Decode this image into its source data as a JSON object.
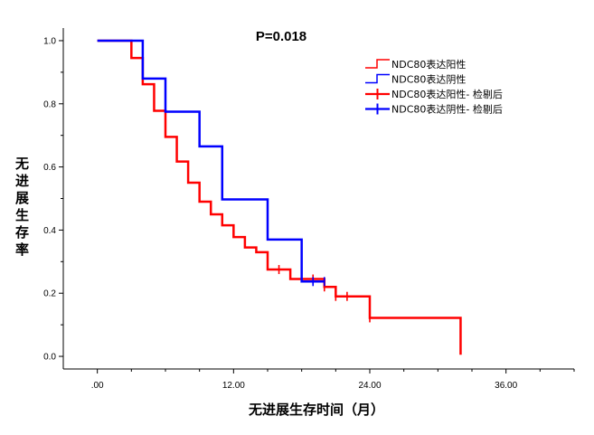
{
  "chart_data": {
    "type": "line",
    "annotation": "P=0.018",
    "xlabel": "无进展生存时间（月）",
    "ylabel": "无进展生存率",
    "xlim": [
      -3,
      42
    ],
    "ylim": [
      -0.04,
      1.04
    ],
    "x_ticks": [
      0,
      12,
      24,
      36
    ],
    "x_tick_labels": [
      ".00",
      "12.00",
      "24.00",
      "36.00"
    ],
    "x_minor_ticks": [
      3,
      6,
      9,
      15,
      18,
      21,
      27,
      30,
      33,
      39,
      42
    ],
    "y_ticks": [
      0,
      0.2,
      0.4,
      0.6,
      0.8,
      1.0
    ],
    "y_tick_labels": [
      "0.0",
      "0.2",
      "0.4",
      "0.6",
      "0.8",
      "1.0"
    ],
    "y_minor_ticks": [
      0.1,
      0.3,
      0.5,
      0.7,
      0.9
    ],
    "grid": false,
    "legend_position": "top-right",
    "legend": [
      {
        "label": "NDC80表达阳性",
        "color": "#ff0000",
        "kind": "step"
      },
      {
        "label": "NDC80表达阴性",
        "color": "#0000ff",
        "kind": "step"
      },
      {
        "label": "NDC80表达阳性- 检剔后",
        "color": "#ff0000",
        "kind": "censor"
      },
      {
        "label": "NDC80表达阴性- 检剔后",
        "color": "#0000ff",
        "kind": "censor"
      }
    ],
    "series": [
      {
        "name": "NDC80表达阳性",
        "color": "#ff0000",
        "steps": [
          [
            0,
            1.0
          ],
          [
            3,
            0.945
          ],
          [
            4,
            0.862
          ],
          [
            5,
            0.778
          ],
          [
            6,
            0.695
          ],
          [
            7,
            0.617
          ],
          [
            8,
            0.55
          ],
          [
            9,
            0.49
          ],
          [
            10,
            0.45
          ],
          [
            11,
            0.415
          ],
          [
            12,
            0.378
          ],
          [
            13,
            0.345
          ],
          [
            14,
            0.33
          ],
          [
            15,
            0.275
          ],
          [
            17,
            0.245
          ],
          [
            20,
            0.22
          ],
          [
            21,
            0.19
          ],
          [
            24,
            0.122
          ],
          [
            32,
            0.005
          ]
        ],
        "end_x": 32,
        "censored": [
          [
            16,
            0.275
          ],
          [
            19,
            0.245
          ],
          [
            20,
            0.22
          ],
          [
            21,
            0.19
          ],
          [
            22,
            0.19
          ],
          [
            24,
            0.122
          ]
        ]
      },
      {
        "name": "NDC80表达阴性",
        "color": "#0000ff",
        "steps": [
          [
            0,
            1.0
          ],
          [
            4,
            0.88
          ],
          [
            6,
            0.775
          ],
          [
            9,
            0.665
          ],
          [
            11,
            0.497
          ],
          [
            15,
            0.37
          ],
          [
            18,
            0.237
          ]
        ],
        "end_x": 20,
        "censored": [
          [
            19,
            0.237
          ],
          [
            20,
            0.237
          ]
        ]
      }
    ]
  }
}
